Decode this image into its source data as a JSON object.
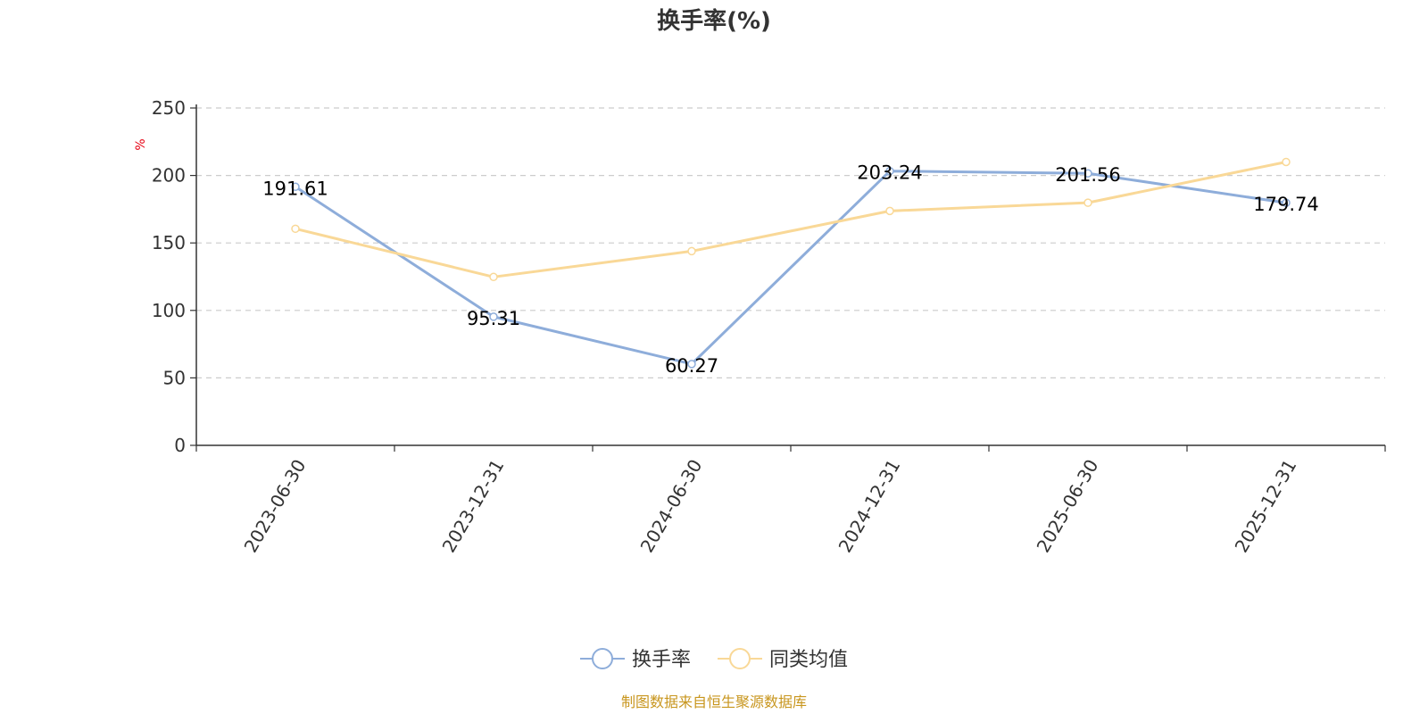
{
  "chart_data": {
    "type": "line",
    "title": "换手率(%)",
    "ylabel": "%",
    "categories": [
      "2023-06-30",
      "2023-12-31",
      "2024-06-30",
      "2024-12-31",
      "2025-06-30",
      "2025-12-31"
    ],
    "ylim": [
      0,
      250
    ],
    "yticks": [
      0,
      50,
      100,
      150,
      200,
      250
    ],
    "grid": true,
    "legend_position": "bottom-center",
    "series": [
      {
        "name": "换手率",
        "color": "#8EADDA",
        "values": [
          191.61,
          95.31,
          60.27,
          203.24,
          201.56,
          179.74
        ],
        "labels": [
          "191.61",
          "95.31",
          "60.27",
          "203.24",
          "201.56",
          "179.74"
        ],
        "show_labels": true
      },
      {
        "name": "同类均值",
        "color": "#F9D897",
        "values": [
          160.5,
          124.8,
          143.9,
          173.7,
          179.8,
          210.0
        ],
        "show_labels": false
      }
    ],
    "unit_color": "#E60012",
    "source": "制图数据来自恒生聚源数据库",
    "source_color": "#C8961E"
  }
}
